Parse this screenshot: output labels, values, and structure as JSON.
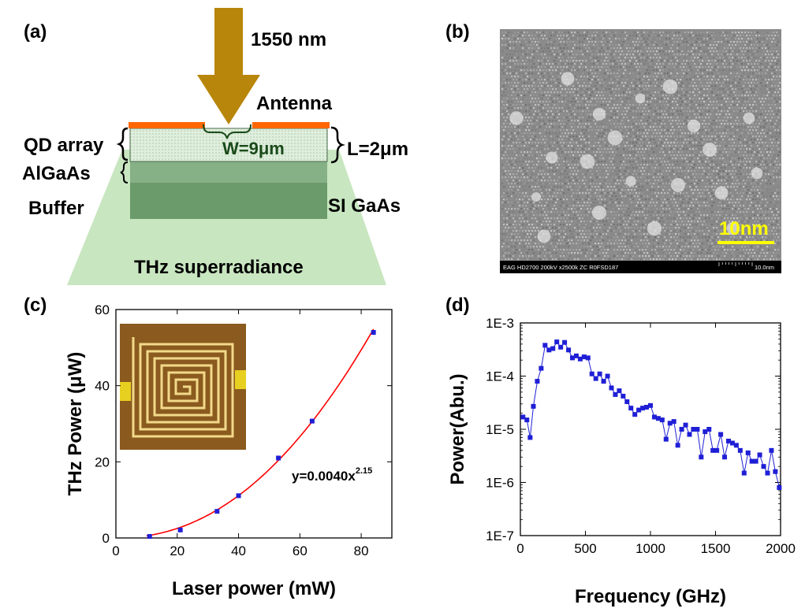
{
  "panels": {
    "a": {
      "label": "(a)",
      "laser": "1550 nm",
      "antenna": "Antenna",
      "qd_array": "QD array",
      "width": "W=9μm",
      "length": "L=2μm",
      "algaas": "AlGaAs",
      "buffer": "Buffer",
      "substrate": "SI GaAs",
      "emission": "THz superradiance",
      "colors": {
        "arrow": "#b8860b",
        "antenna": "#ff6600",
        "layers": "#7fa67f",
        "beam": "#c8e6c0"
      }
    },
    "b": {
      "label": "(b)",
      "scalebar": "10nm",
      "infobar": "EAG HD2700  200kV  x2500k  ZC     R0FSD187",
      "infobar_scale": "10.0nm",
      "colors": {
        "scalebar": "#ffff00"
      }
    },
    "c": {
      "label": "(c)",
      "fit_label": "y=0.0040x",
      "fit_exp": "2.15"
    },
    "d": {
      "label": "(d)"
    }
  },
  "chart_data": [
    {
      "panel": "c",
      "type": "scatter",
      "xlabel": "Laser power (mW)",
      "ylabel": "THz Power (μW)",
      "xlim": [
        0,
        90
      ],
      "ylim": [
        0,
        60
      ],
      "xticks": [
        0,
        20,
        40,
        60,
        80
      ],
      "yticks": [
        0,
        20,
        40,
        60
      ],
      "x": [
        11,
        21,
        33,
        40,
        53,
        64,
        84
      ],
      "y": [
        0.4,
        2.1,
        7.0,
        11.1,
        21.0,
        30.7,
        54.0
      ],
      "fit": {
        "equation": "y=0.0040x^2.15",
        "a": 0.004,
        "b": 2.15,
        "color": "#ff0000"
      },
      "marker_color": "#1f1fd6"
    },
    {
      "panel": "d",
      "type": "line",
      "xlabel": "Frequency (GHz)",
      "ylabel": "Power(Abu.)",
      "xlim": [
        0,
        2000
      ],
      "ylim": [
        1e-07,
        0.001
      ],
      "yscale": "log",
      "xticks": [
        0,
        500,
        1000,
        1500,
        2000
      ],
      "yticks": [
        "1E-7",
        "1E-6",
        "1E-5",
        "1E-4",
        "1E-3"
      ],
      "x": [
        20,
        50,
        75,
        100,
        130,
        160,
        190,
        220,
        250,
        280,
        310,
        340,
        370,
        400,
        430,
        460,
        490,
        520,
        550,
        580,
        610,
        640,
        670,
        700,
        730,
        760,
        790,
        820,
        850,
        880,
        910,
        940,
        970,
        1000,
        1030,
        1060,
        1090,
        1120,
        1150,
        1180,
        1210,
        1240,
        1270,
        1300,
        1330,
        1360,
        1390,
        1420,
        1450,
        1480,
        1510,
        1540,
        1570,
        1600,
        1630,
        1660,
        1690,
        1720,
        1750,
        1780,
        1810,
        1840,
        1870,
        1900,
        1930,
        1960,
        1990
      ],
      "y": [
        1.7e-05,
        1.5e-05,
        7e-06,
        2.7e-05,
        8e-05,
        0.00014,
        0.00038,
        0.00031,
        0.00033,
        0.00044,
        0.00035,
        0.00043,
        0.00031,
        0.00022,
        0.00024,
        0.00021,
        0.00023,
        0.00022,
        0.00011,
        9e-05,
        0.00011,
        8e-05,
        0.0001,
        6e-05,
        4.5e-05,
        5.3e-05,
        4.2e-05,
        3.3e-05,
        2.5e-05,
        1.9e-05,
        2.3e-05,
        2.5e-05,
        2.6e-05,
        2.8e-05,
        1.7e-05,
        1.6e-05,
        1.5e-05,
        6.5e-06,
        1.3e-05,
        1.4e-05,
        5e-06,
        1e-05,
        1.2e-05,
        8e-06,
        1e-05,
        1e-05,
        3e-06,
        9e-06,
        1e-05,
        4e-06,
        4e-06,
        8e-06,
        3e-06,
        6e-06,
        5.5e-06,
        5e-06,
        4e-06,
        1.5e-06,
        3.6e-06,
        2.5e-06,
        2.5e-06,
        3.3e-06,
        2e-06,
        1.5e-06,
        4e-06,
        1.6e-06,
        8e-07
      ],
      "color": "#1f1fd6"
    }
  ]
}
